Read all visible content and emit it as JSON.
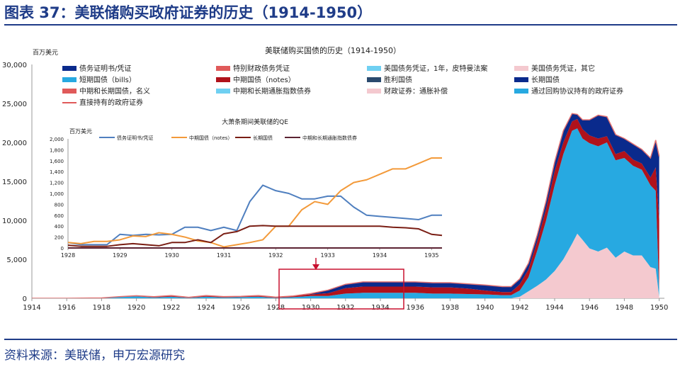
{
  "header": {
    "figure_title": "图表 37：美联储购买政府证券的历史（1914-1950）"
  },
  "footer": {
    "source": "资料来源：美联储，申万宏源研究"
  },
  "colors": {
    "navy": "#0a2a8c",
    "red": "#b0121b",
    "sky": "#27a9e1",
    "pink": "#f4c9cf",
    "steel": "#4f7fbf",
    "orange": "#f39a3a",
    "maroon": "#7a1e14",
    "plum": "#5c2333",
    "boxred": "#c8102e"
  },
  "chart_data": [
    {
      "type": "area",
      "title": "美联储购买国债的历史（1914-1950）",
      "ylabel": "百万美元",
      "xlim": [
        1914,
        1950.3
      ],
      "ylim": [
        0,
        30000
      ],
      "x_ticks": [
        1914,
        1916,
        1918,
        1920,
        1922,
        1924,
        1926,
        1928,
        1930,
        1932,
        1934,
        1936,
        1938,
        1940,
        1942,
        1944,
        1946,
        1948,
        1950
      ],
      "y_ticks": [
        0,
        5000,
        10000,
        15000,
        20000,
        25000,
        30000
      ],
      "y_tick_labels": [
        "0",
        "5,000",
        "10,000",
        "15,000",
        "20,000",
        "25,000",
        "30,000"
      ],
      "grid": false,
      "legend_position": "top",
      "legend": [
        {
          "name": "债务证明书/凭证",
          "color": "#0a2a8c"
        },
        {
          "name": "特别财政债务凭证",
          "color": "#e05a5a"
        },
        {
          "name": "美国债务凭证，1年，皮特曼法案",
          "color": "#6fd0f2"
        },
        {
          "name": "美国债务凭证，其它",
          "color": "#f4c9cf"
        },
        {
          "name": "短期国债（bills）",
          "color": "#27a9e1"
        },
        {
          "name": "中期国债（notes）",
          "color": "#b0121b"
        },
        {
          "name": "胜利国债",
          "color": "#2a4a6e"
        },
        {
          "name": "长期国债",
          "color": "#0a2a8c"
        },
        {
          "name": "中期和长期国债，名义",
          "color": "#e05a5a"
        },
        {
          "name": "中期和长期通胀指数债券",
          "color": "#6fd0f2"
        },
        {
          "name": "财政证券：通胀补偿",
          "color": "#f4c9cf"
        },
        {
          "name": "通过回购协议持有的政府证券",
          "color": "#27a9e1"
        },
        {
          "name": "直接持有的政府证券",
          "color": "#e05a5a",
          "line": true
        }
      ],
      "x": [
        1914,
        1916,
        1918,
        1919,
        1920,
        1921,
        1922,
        1923,
        1924,
        1925,
        1926,
        1927,
        1928,
        1929,
        1930,
        1931,
        1932,
        1933,
        1934,
        1935,
        1936,
        1937,
        1938,
        1939,
        1940,
        1941,
        1941.5,
        1942,
        1942.5,
        1943,
        1943.5,
        1944,
        1944.5,
        1945,
        1945.3,
        1945.6,
        1946,
        1946.5,
        1947,
        1947.5,
        1948,
        1948.5,
        1949,
        1949.5,
        1949.8,
        1950
      ],
      "series": [
        {
          "name": "美国债务凭证，其它",
          "color": "#f4c9cf",
          "values": [
            0,
            0,
            0,
            0,
            0,
            0,
            0,
            0,
            0,
            0,
            0,
            0,
            0,
            0,
            0,
            0,
            0,
            0,
            0,
            0,
            0,
            0,
            0,
            0,
            0,
            0,
            0,
            200,
            900,
            1600,
            2400,
            3500,
            5000,
            7000,
            8300,
            7500,
            6400,
            6000,
            6500,
            5200,
            6000,
            5500,
            5500,
            4000,
            3800,
            200
          ]
        },
        {
          "name": "短期国债（bills）",
          "color": "#27a9e1",
          "values": [
            0,
            0,
            50,
            150,
            250,
            100,
            200,
            50,
            200,
            100,
            150,
            200,
            50,
            150,
            300,
            300,
            600,
            700,
            700,
            700,
            700,
            600,
            600,
            550,
            500,
            400,
            400,
            800,
            1800,
            4500,
            7500,
            11000,
            13500,
            14500,
            13500,
            13000,
            13500,
            13500,
            13500,
            12500,
            12000,
            11500,
            11000,
            10500,
            10000,
            800
          ]
        },
        {
          "name": "中期国债（notes）",
          "color": "#b0121b",
          "values": [
            0,
            0,
            0,
            50,
            80,
            100,
            150,
            80,
            150,
            120,
            100,
            150,
            100,
            150,
            200,
            350,
            700,
            800,
            800,
            800,
            800,
            800,
            800,
            700,
            500,
            400,
            400,
            800,
            1000,
            1200,
            1500,
            1800,
            1500,
            1200,
            1200,
            1200,
            1000,
            1000,
            800,
            800,
            900,
            800,
            800,
            1000,
            3000,
            9000
          ]
        },
        {
          "name": "长期国债",
          "color": "#0a2a8c",
          "values": [
            0,
            0,
            0,
            0,
            0,
            0,
            0,
            0,
            0,
            0,
            0,
            0,
            0,
            0,
            100,
            400,
            500,
            600,
            600,
            600,
            600,
            600,
            600,
            600,
            700,
            700,
            700,
            700,
            800,
            800,
            1000,
            1200,
            1500,
            1000,
            600,
            1200,
            2000,
            3000,
            2500,
            2500,
            1600,
            2000,
            1800,
            2500,
            3500,
            8200
          ]
        }
      ]
    },
    {
      "type": "line",
      "title": "大萧条期间美联储的QE",
      "ylabel": "百万美元",
      "xlim": [
        1928,
        1935.2
      ],
      "ylim": [
        0,
        2000
      ],
      "x_ticks": [
        1928,
        1929,
        1930,
        1931,
        1932,
        1933,
        1934,
        1935
      ],
      "y_ticks": [
        0,
        200,
        400,
        600,
        800,
        1000,
        1200,
        1400,
        1600,
        1800,
        2000
      ],
      "y_tick_labels": [
        "0",
        "200",
        "400",
        "600",
        "800",
        "1,000",
        "1,200",
        "1,400",
        "1,600",
        "1,800",
        "2,000"
      ],
      "legend_position": "top",
      "x": [
        1928,
        1928.25,
        1928.5,
        1928.75,
        1929,
        1929.25,
        1929.5,
        1929.75,
        1930,
        1930.25,
        1930.5,
        1930.75,
        1931,
        1931.25,
        1931.5,
        1931.75,
        1932,
        1932.25,
        1932.5,
        1932.75,
        1933,
        1933.25,
        1933.5,
        1933.75,
        1934,
        1934.25,
        1934.5,
        1934.75,
        1935,
        1935.2
      ],
      "series": [
        {
          "name": "债务证明书/凭证",
          "color": "#4f7fbf",
          "values": [
            100,
            60,
            60,
            60,
            250,
            230,
            250,
            240,
            250,
            380,
            380,
            320,
            380,
            320,
            850,
            1150,
            1050,
            1000,
            900,
            900,
            950,
            950,
            750,
            600,
            580,
            560,
            540,
            520,
            600,
            600
          ]
        },
        {
          "name": "中期国债（notes）",
          "color": "#f39a3a",
          "values": [
            100,
            80,
            120,
            120,
            150,
            220,
            210,
            280,
            250,
            200,
            130,
            100,
            20,
            60,
            100,
            150,
            400,
            400,
            700,
            850,
            800,
            1050,
            1200,
            1250,
            1350,
            1450,
            1450,
            1550,
            1650,
            1650
          ]
        },
        {
          "name": "长期国债",
          "color": "#7a1e14",
          "values": [
            50,
            30,
            30,
            30,
            60,
            80,
            60,
            40,
            100,
            100,
            150,
            100,
            260,
            300,
            400,
            410,
            400,
            400,
            400,
            400,
            400,
            400,
            400,
            400,
            400,
            380,
            370,
            350,
            250,
            230
          ]
        },
        {
          "name": "中期和长期通胀指数债券",
          "color": "#5c2333",
          "values": [
            0,
            0,
            0,
            0,
            0,
            0,
            0,
            0,
            0,
            0,
            0,
            0,
            0,
            0,
            0,
            0,
            0,
            0,
            0,
            0,
            0,
            0,
            0,
            0,
            0,
            0,
            0,
            0,
            0,
            0
          ]
        }
      ]
    }
  ]
}
